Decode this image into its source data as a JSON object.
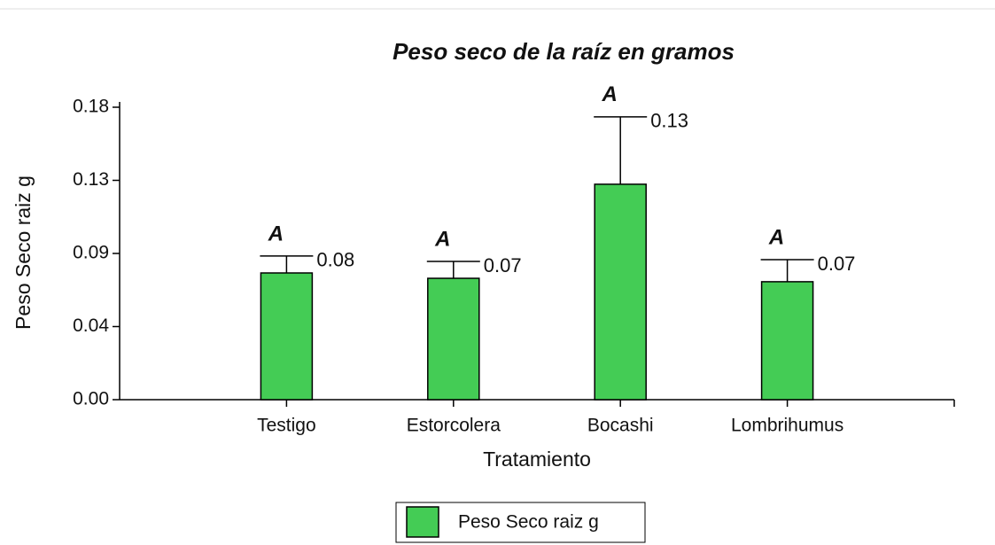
{
  "chart_data": {
    "type": "bar",
    "title": "Peso seco de la raíz en gramos",
    "x_label": "Tratamiento",
    "y_label": "Peso Seco raiz g",
    "categories": [
      "Testigo",
      "Estorcolera",
      "Bocashi",
      "Lombrihumus"
    ],
    "series": [
      {
        "name": "Peso Seco raiz g",
        "color": "#44cc55",
        "values": [
          0.078,
          0.0747,
          0.1326,
          0.0726
        ],
        "errors": [
          0.0104,
          0.0104,
          0.0415,
          0.0136
        ],
        "value_labels": [
          "0.08",
          "0.07",
          "0.13",
          "0.07"
        ],
        "letters": [
          "A",
          "A",
          "A",
          "A"
        ]
      }
    ],
    "ylim": [
      0,
      0.18
    ],
    "yticks": [
      {
        "value": 0,
        "label": "0.00"
      },
      {
        "value": 0.045,
        "label": "0.04"
      },
      0.09,
      {
        "value": 0.135,
        "label": "0.13"
      },
      0.18
    ],
    "grid": false,
    "legend": "bottom"
  }
}
